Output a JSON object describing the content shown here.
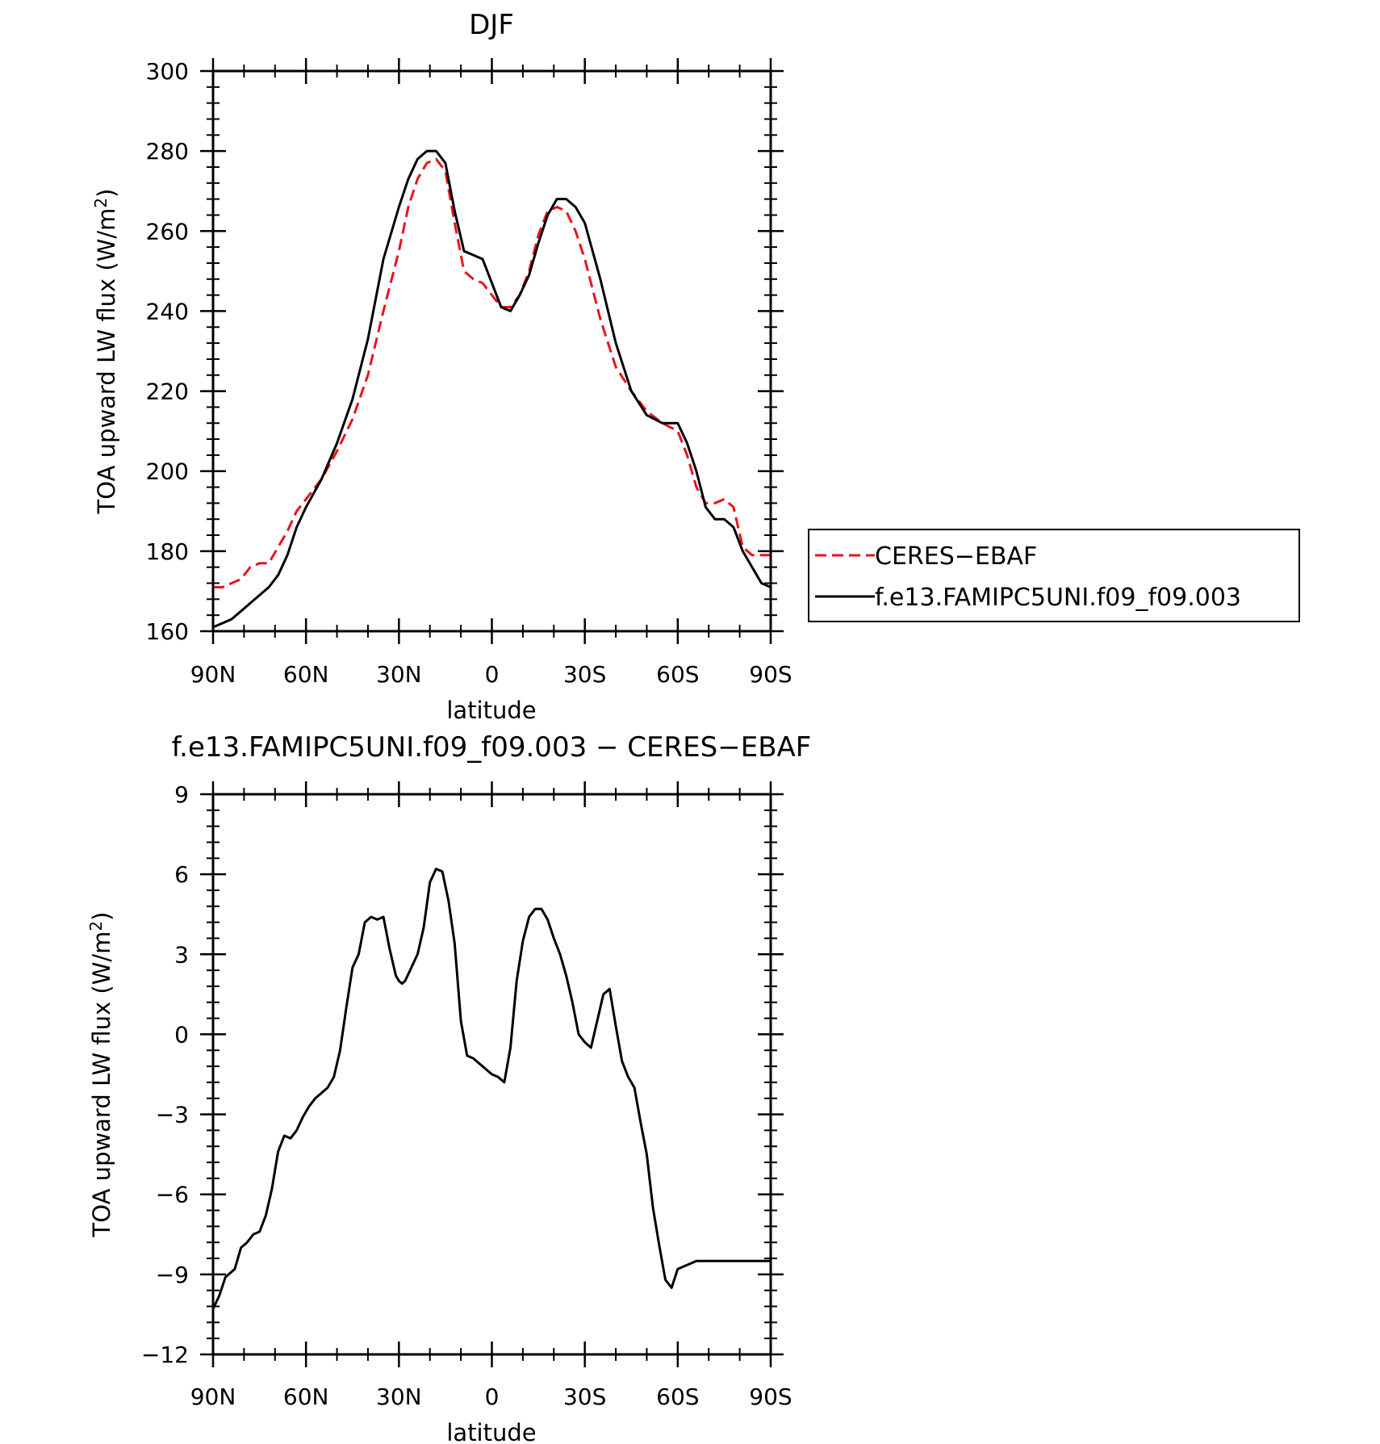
{
  "chart_data": [
    {
      "type": "line",
      "title": "DJF",
      "xlabel": "latitude",
      "ylabel": "TOA upward LW flux (W/m",
      "ylabel_sup": "2",
      "ylabel_tail": ")",
      "xlim": [
        90,
        -90
      ],
      "ylim": [
        160,
        300
      ],
      "xticks": [
        90,
        60,
        30,
        0,
        -30,
        -60,
        -90
      ],
      "xtick_labels": [
        "90N",
        "60N",
        "30N",
        "0",
        "30S",
        "60S",
        "90S"
      ],
      "yticks": [
        160,
        180,
        200,
        220,
        240,
        260,
        280,
        300
      ],
      "ytick_labels": [
        "160",
        "180",
        "200",
        "220",
        "240",
        "260",
        "280",
        "300"
      ],
      "legend_position": "right",
      "series": [
        {
          "name": "CERES−EBAF",
          "color": "#e8141b",
          "dash": "dashed",
          "x": [
            90,
            87,
            84,
            81,
            78,
            75,
            72,
            69,
            66,
            63,
            60,
            55,
            50,
            45,
            40,
            35,
            30,
            27,
            24,
            21,
            18,
            15,
            12,
            9,
            6,
            3,
            0,
            -3,
            -6,
            -9,
            -12,
            -15,
            -18,
            -21,
            -24,
            -27,
            -30,
            -35,
            -40,
            -45,
            -50,
            -55,
            -60,
            -63,
            -66,
            -69,
            -72,
            -75,
            -78,
            -81,
            -84,
            -87,
            -90
          ],
          "y": [
            171,
            171,
            172,
            173,
            176,
            177,
            177,
            181,
            185,
            190,
            193,
            198,
            205,
            213,
            224,
            240,
            255,
            266,
            273,
            277,
            278,
            275,
            262,
            250,
            248,
            247,
            244,
            241,
            241,
            244,
            250,
            259,
            265,
            266,
            265,
            260,
            253,
            238,
            226,
            220,
            215,
            212,
            210,
            204,
            196,
            192,
            192,
            193,
            191,
            181,
            179,
            179,
            179
          ]
        },
        {
          "name": "f.e13.FAMIPC5UNI.f09_f09.003",
          "color": "#000000",
          "dash": "solid",
          "x": [
            90,
            87,
            84,
            81,
            78,
            75,
            72,
            69,
            66,
            63,
            60,
            55,
            50,
            45,
            40,
            35,
            30,
            27,
            24,
            21,
            18,
            15,
            12,
            9,
            6,
            3,
            0,
            -3,
            -6,
            -9,
            -12,
            -15,
            -18,
            -21,
            -24,
            -27,
            -30,
            -35,
            -40,
            -45,
            -50,
            -55,
            -60,
            -63,
            -66,
            -69,
            -72,
            -75,
            -78,
            -81,
            -84,
            -87,
            -90
          ],
          "y": [
            161,
            162,
            163,
            165,
            167,
            169,
            171,
            174,
            179,
            186,
            191,
            198,
            207,
            218,
            233,
            253,
            266,
            273,
            278,
            280,
            280,
            277,
            265,
            255,
            254,
            253,
            247,
            241,
            240,
            244,
            249,
            257,
            264,
            268,
            268,
            266,
            262,
            248,
            232,
            220,
            214,
            212,
            212,
            207,
            200,
            191,
            188,
            188,
            186,
            180,
            176,
            172,
            171
          ]
        }
      ]
    },
    {
      "type": "line",
      "title": "f.e13.FAMIPC5UNI.f09_f09.003  −  CERES−EBAF",
      "xlabel": "latitude",
      "ylabel": "TOA upward LW flux (W/m",
      "ylabel_sup": "2",
      "ylabel_tail": ")",
      "xlim": [
        90,
        -90
      ],
      "ylim": [
        -12,
        9
      ],
      "xticks": [
        90,
        60,
        30,
        0,
        -30,
        -60,
        -90
      ],
      "xtick_labels": [
        "90N",
        "60N",
        "30N",
        "0",
        "30S",
        "60S",
        "90S"
      ],
      "yticks": [
        -12,
        -9,
        -6,
        -3,
        0,
        3,
        6,
        9
      ],
      "ytick_labels": [
        "−12",
        "−9",
        "−6",
        "−3",
        "0",
        "3",
        "6",
        "9"
      ],
      "series": [
        {
          "color": "#000000",
          "dash": "solid",
          "x": [
            90,
            88,
            86,
            83,
            81,
            79,
            77,
            75,
            73,
            71,
            69,
            67,
            65,
            63,
            61,
            59,
            57,
            55,
            53,
            51,
            49,
            47,
            45,
            43,
            41,
            39,
            37,
            35,
            33,
            31,
            30,
            29,
            28,
            26,
            24,
            22,
            20,
            18,
            16,
            14,
            12,
            10,
            8,
            6,
            5,
            4,
            2,
            0,
            -2,
            -4,
            -6,
            -8,
            -10,
            -12,
            -14,
            -16,
            -18,
            -20,
            -22,
            -24,
            -26,
            -28,
            -30,
            -32,
            -34,
            -36,
            -38,
            -40,
            -42,
            -44,
            -46,
            -48,
            -50,
            -52,
            -54,
            -56,
            -58,
            -60,
            -62,
            -64,
            -66,
            -67,
            -68,
            -70,
            -72,
            -74,
            -76,
            -78,
            -80,
            -82,
            -84,
            -86,
            -87,
            -88,
            -90
          ],
          "y": [
            -10.3,
            -9.8,
            -9.1,
            -8.8,
            -8.0,
            -7.8,
            -7.5,
            -7.4,
            -6.8,
            -5.8,
            -4.4,
            -3.8,
            -3.9,
            -3.6,
            -3.1,
            -2.7,
            -2.4,
            -2.2,
            -2.0,
            -1.6,
            -0.6,
            1.0,
            2.5,
            3.0,
            4.2,
            4.4,
            4.3,
            4.4,
            3.2,
            2.2,
            2.0,
            1.9,
            2.0,
            2.5,
            3.0,
            4.0,
            5.7,
            6.2,
            6.1,
            5.0,
            3.4,
            0.5,
            -0.8,
            -0.9,
            -1.0,
            -1.1,
            -1.3,
            -1.5,
            -1.6,
            -1.8,
            -0.5,
            2.0,
            3.5,
            4.4,
            4.7,
            4.7,
            4.3,
            3.6,
            3.0,
            2.2,
            1.2,
            0.0,
            -0.3,
            -0.5,
            0.5,
            1.5,
            1.7,
            0.3,
            -1.0,
            -1.6,
            -2.0,
            -3.3,
            -4.5,
            -6.5,
            -7.9,
            -9.2,
            -9.5,
            -8.8,
            -8.7,
            -8.6,
            -8.5,
            -8.5,
            -8.5,
            -8.5,
            -8.5,
            -8.5,
            -8.5,
            -8.5,
            -8.5,
            -8.5,
            -8.5,
            -8.5,
            -8.5,
            -8.5,
            -8.5
          ]
        }
      ]
    }
  ]
}
